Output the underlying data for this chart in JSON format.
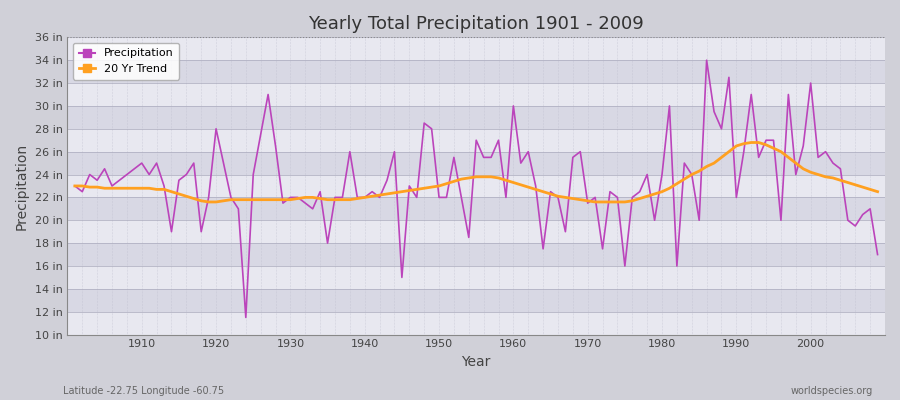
{
  "title": "Yearly Total Precipitation 1901 - 2009",
  "xlabel": "Year",
  "ylabel": "Precipitation",
  "footnote_left": "Latitude -22.75 Longitude -60.75",
  "footnote_right": "worldspecies.org",
  "bg_color": "#d8d8d8",
  "plot_bg_color": "#e0e0e8",
  "precip_color": "#bb44bb",
  "trend_color": "#ffa020",
  "ylim": [
    10,
    36
  ],
  "yticks": [
    10,
    12,
    14,
    16,
    18,
    20,
    22,
    24,
    26,
    28,
    30,
    32,
    34,
    36
  ],
  "xlim": [
    1901,
    2009
  ],
  "years": [
    1901,
    1902,
    1903,
    1904,
    1905,
    1906,
    1907,
    1908,
    1909,
    1910,
    1911,
    1912,
    1913,
    1914,
    1915,
    1916,
    1917,
    1918,
    1919,
    1920,
    1921,
    1922,
    1923,
    1924,
    1925,
    1926,
    1927,
    1928,
    1929,
    1930,
    1931,
    1932,
    1933,
    1934,
    1935,
    1936,
    1937,
    1938,
    1939,
    1940,
    1941,
    1942,
    1943,
    1944,
    1945,
    1946,
    1947,
    1948,
    1949,
    1950,
    1951,
    1952,
    1953,
    1954,
    1955,
    1956,
    1957,
    1958,
    1959,
    1960,
    1961,
    1962,
    1963,
    1964,
    1965,
    1966,
    1967,
    1968,
    1969,
    1970,
    1971,
    1972,
    1973,
    1974,
    1975,
    1976,
    1977,
    1978,
    1979,
    1980,
    1981,
    1982,
    1983,
    1984,
    1985,
    1986,
    1987,
    1988,
    1989,
    1990,
    1991,
    1992,
    1993,
    1994,
    1995,
    1996,
    1997,
    1998,
    1999,
    2000,
    2001,
    2002,
    2003,
    2004,
    2005,
    2006,
    2007,
    2008,
    2009
  ],
  "precip": [
    23.0,
    22.5,
    24.0,
    23.5,
    24.5,
    23.0,
    23.5,
    24.0,
    24.5,
    25.0,
    24.0,
    25.0,
    23.0,
    19.0,
    23.5,
    24.0,
    25.0,
    19.0,
    22.0,
    28.0,
    25.0,
    22.0,
    21.0,
    11.5,
    24.0,
    27.5,
    31.0,
    26.5,
    21.5,
    22.0,
    22.0,
    21.5,
    21.0,
    22.5,
    18.0,
    22.0,
    22.0,
    26.0,
    22.0,
    22.0,
    22.5,
    22.0,
    23.5,
    26.0,
    15.0,
    23.0,
    22.0,
    28.5,
    28.0,
    22.0,
    22.0,
    25.5,
    22.0,
    18.5,
    27.0,
    25.5,
    25.5,
    27.0,
    22.0,
    30.0,
    25.0,
    26.0,
    23.0,
    17.5,
    22.5,
    22.0,
    19.0,
    25.5,
    26.0,
    21.5,
    22.0,
    17.5,
    22.5,
    22.0,
    16.0,
    22.0,
    22.5,
    24.0,
    20.0,
    24.0,
    30.0,
    16.0,
    25.0,
    24.0,
    20.0,
    34.0,
    29.5,
    28.0,
    32.5,
    22.0,
    26.0,
    31.0,
    25.5,
    27.0,
    27.0,
    20.0,
    31.0,
    24.0,
    26.5,
    32.0,
    25.5,
    26.0,
    25.0,
    24.5,
    20.0,
    19.5,
    20.5,
    21.0,
    17.0
  ],
  "trend": [
    23.0,
    23.0,
    22.9,
    22.9,
    22.8,
    22.8,
    22.8,
    22.8,
    22.8,
    22.8,
    22.8,
    22.7,
    22.7,
    22.5,
    22.3,
    22.1,
    21.9,
    21.7,
    21.6,
    21.6,
    21.7,
    21.8,
    21.8,
    21.8,
    21.8,
    21.8,
    21.8,
    21.8,
    21.8,
    21.8,
    21.9,
    22.0,
    22.0,
    21.9,
    21.8,
    21.8,
    21.8,
    21.8,
    21.9,
    22.0,
    22.1,
    22.2,
    22.3,
    22.4,
    22.5,
    22.6,
    22.7,
    22.8,
    22.9,
    23.0,
    23.2,
    23.4,
    23.6,
    23.7,
    23.8,
    23.8,
    23.8,
    23.7,
    23.5,
    23.3,
    23.1,
    22.9,
    22.7,
    22.5,
    22.3,
    22.1,
    22.0,
    21.9,
    21.8,
    21.7,
    21.6,
    21.6,
    21.6,
    21.6,
    21.6,
    21.7,
    21.9,
    22.1,
    22.3,
    22.5,
    22.8,
    23.2,
    23.6,
    24.0,
    24.3,
    24.7,
    25.0,
    25.5,
    26.0,
    26.5,
    26.7,
    26.8,
    26.8,
    26.6,
    26.3,
    26.0,
    25.5,
    25.0,
    24.5,
    24.2,
    24.0,
    23.8,
    23.7,
    23.5,
    23.3,
    23.1,
    22.9,
    22.7,
    22.5
  ]
}
